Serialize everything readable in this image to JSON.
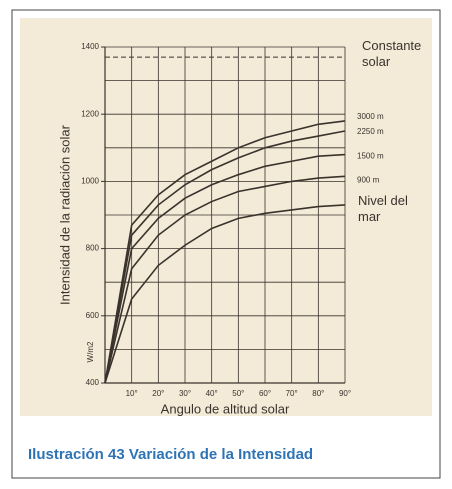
{
  "chart_data": {
    "type": "line",
    "ylabel": "Intensidad de la radiación solar",
    "yunit": "W/m2",
    "xlabel": "Angulo de altitud solar",
    "x": [
      0,
      10,
      20,
      30,
      40,
      50,
      60,
      70,
      80,
      90
    ],
    "xlim": [
      0,
      90
    ],
    "xticks": [
      {
        "value": 10,
        "label": "10°"
      },
      {
        "value": 20,
        "label": "20°"
      },
      {
        "value": 30,
        "label": "30°"
      },
      {
        "value": 40,
        "label": "40°"
      },
      {
        "value": 50,
        "label": "50°"
      },
      {
        "value": 60,
        "label": "60°"
      },
      {
        "value": 70,
        "label": "70°"
      },
      {
        "value": 80,
        "label": "80°"
      },
      {
        "value": 90,
        "label": "90°"
      }
    ],
    "ylim": [
      400,
      1400
    ],
    "yticks": [
      400,
      600,
      800,
      1000,
      1200,
      1400
    ],
    "ygrid": [
      500,
      600,
      700,
      800,
      900,
      1000,
      1100,
      1200,
      1300,
      1400
    ],
    "grid": true,
    "color": "#3a332c",
    "reference_line": {
      "text": "Constante solar",
      "value": 1370
    },
    "series": [
      {
        "name": "3000 m",
        "values": [
          400,
          870,
          960,
          1020,
          1060,
          1100,
          1130,
          1150,
          1170,
          1180
        ]
      },
      {
        "name": "2250 m",
        "values": [
          400,
          840,
          930,
          990,
          1035,
          1070,
          1100,
          1120,
          1135,
          1150
        ]
      },
      {
        "name": "1500 m",
        "values": [
          400,
          800,
          890,
          950,
          990,
          1020,
          1045,
          1060,
          1075,
          1080
        ]
      },
      {
        "name": "900 m",
        "values": [
          400,
          740,
          840,
          900,
          940,
          970,
          985,
          1000,
          1010,
          1015
        ]
      },
      {
        "name": "Nivel del mar",
        "values": [
          400,
          650,
          750,
          810,
          860,
          890,
          905,
          915,
          925,
          930
        ]
      }
    ]
  },
  "caption": "Ilustración 43 Variación de la Intensidad"
}
